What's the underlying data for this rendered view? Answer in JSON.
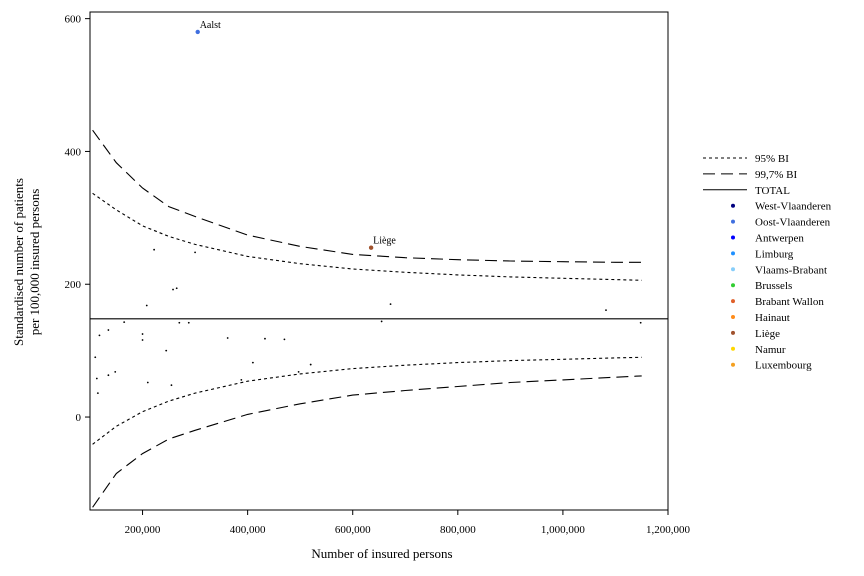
{
  "chart_data": {
    "type": "scatter",
    "title": "",
    "xlabel": "Number of insured persons",
    "ylabel": [
      "Standardised number of patients",
      "per 100,000 insured persons"
    ],
    "xlim": [
      100000,
      1200000
    ],
    "ylim": [
      -140,
      610
    ],
    "x_ticks": [
      200000,
      400000,
      600000,
      800000,
      1000000,
      1200000
    ],
    "x_tick_labels": [
      "200,000",
      "400,000",
      "600,000",
      "800,000",
      "1,000,000",
      "1,200,000"
    ],
    "y_ticks": [
      0,
      200,
      400,
      600
    ],
    "y_tick_labels": [
      "0",
      "200",
      "400",
      "600"
    ],
    "grid": false,
    "legend_position": "right",
    "total": 148,
    "limits": {
      "x": [
        105000,
        150000,
        200000,
        250000,
        300000,
        400000,
        500000,
        600000,
        700000,
        800000,
        900000,
        1000000,
        1100000,
        1150000
      ],
      "bi95_upper": [
        337,
        312,
        288,
        272,
        260,
        242,
        231,
        223,
        218,
        214,
        211,
        209,
        207,
        206
      ],
      "bi95_lower": [
        -41,
        -14,
        8,
        24,
        36,
        54,
        65,
        73,
        78,
        82,
        85,
        87,
        89,
        90
      ],
      "bi997_upper": [
        432,
        383,
        345,
        317,
        302,
        274,
        257,
        245,
        240,
        237,
        235,
        234,
        233,
        233
      ],
      "bi997_lower": [
        -136,
        -85,
        -55,
        -33,
        -20,
        4,
        20,
        33,
        40,
        46,
        52,
        56,
        60,
        62
      ]
    },
    "series_lines": [
      {
        "name": "95% BI",
        "dash": "3,3",
        "key": "bi95"
      },
      {
        "name": "99,7% BI",
        "dash": "12,6",
        "key": "bi997"
      },
      {
        "name": "TOTAL",
        "dash": "",
        "key": "total"
      }
    ],
    "points": [
      {
        "x": 305000,
        "y": 580,
        "label": "Aalst",
        "group": "Oost-Vlaanderen"
      },
      {
        "x": 635000,
        "y": 255,
        "label": "Liège",
        "group": "Liège"
      },
      {
        "x": 222000,
        "y": 252
      },
      {
        "x": 300000,
        "y": 248
      },
      {
        "x": 258000,
        "y": 192
      },
      {
        "x": 265000,
        "y": 194
      },
      {
        "x": 208000,
        "y": 168
      },
      {
        "x": 672000,
        "y": 170
      },
      {
        "x": 1082000,
        "y": 161
      },
      {
        "x": 165000,
        "y": 143
      },
      {
        "x": 270000,
        "y": 142
      },
      {
        "x": 288000,
        "y": 142
      },
      {
        "x": 655000,
        "y": 144
      },
      {
        "x": 1148000,
        "y": 142
      },
      {
        "x": 135000,
        "y": 131
      },
      {
        "x": 200000,
        "y": 125
      },
      {
        "x": 200000,
        "y": 116
      },
      {
        "x": 118000,
        "y": 123
      },
      {
        "x": 362000,
        "y": 119
      },
      {
        "x": 433000,
        "y": 118
      },
      {
        "x": 470000,
        "y": 117
      },
      {
        "x": 245000,
        "y": 100
      },
      {
        "x": 110000,
        "y": 90
      },
      {
        "x": 410000,
        "y": 82
      },
      {
        "x": 520000,
        "y": 79
      },
      {
        "x": 148000,
        "y": 68
      },
      {
        "x": 497000,
        "y": 68
      },
      {
        "x": 135000,
        "y": 63
      },
      {
        "x": 113000,
        "y": 58
      },
      {
        "x": 388000,
        "y": 56
      },
      {
        "x": 210000,
        "y": 52
      },
      {
        "x": 255000,
        "y": 48
      },
      {
        "x": 115000,
        "y": 36
      }
    ],
    "legend_groups": [
      {
        "name": "West-Vlaanderen",
        "color": "#00007f"
      },
      {
        "name": "Oost-Vlaanderen",
        "color": "#3f6fdf"
      },
      {
        "name": "Antwerpen",
        "color": "#0000ff"
      },
      {
        "name": "Limburg",
        "color": "#1e90ff"
      },
      {
        "name": "Vlaams-Brabant",
        "color": "#87cefa"
      },
      {
        "name": "Brussels",
        "color": "#32cd32"
      },
      {
        "name": "Brabant Wallon",
        "color": "#e0602a"
      },
      {
        "name": "Hainaut",
        "color": "#ff8c1a"
      },
      {
        "name": "Liège",
        "color": "#a0522d"
      },
      {
        "name": "Namur",
        "color": "#ffd700"
      },
      {
        "name": "Luxembourg",
        "color": "#f4a020"
      }
    ]
  }
}
